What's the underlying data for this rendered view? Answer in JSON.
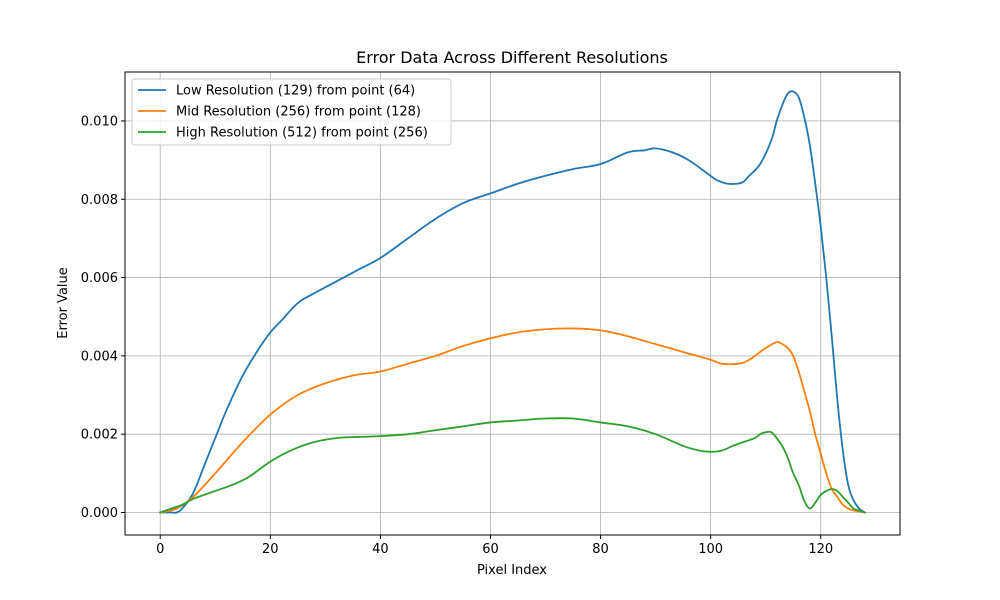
{
  "chart_data": {
    "type": "line",
    "title": "Error Data Across Different Resolutions",
    "xlabel": "Pixel Index",
    "ylabel": "Error Value",
    "xlim": [
      -6.4,
      134.4
    ],
    "ylim": [
      -0.000575,
      0.01125
    ],
    "xticks": [
      0,
      20,
      40,
      60,
      80,
      100,
      120
    ],
    "yticks": [
      0.0,
      0.002,
      0.004,
      0.006,
      0.008,
      0.01
    ],
    "xtick_labels": [
      "0",
      "20",
      "40",
      "60",
      "80",
      "100",
      "120"
    ],
    "ytick_labels": [
      "0.000",
      "0.002",
      "0.004",
      "0.006",
      "0.008",
      "0.010"
    ],
    "grid": true,
    "legend_position": "top-left",
    "series": [
      {
        "name": "Low Resolution (129) from point (64)",
        "color": "#1f77b4",
        "x": [
          0,
          2,
          3,
          4,
          6,
          8,
          10,
          12,
          15,
          18,
          20,
          22,
          25,
          28,
          32,
          36,
          40,
          45,
          50,
          55,
          60,
          65,
          70,
          75,
          80,
          85,
          88,
          90,
          93,
          96,
          99,
          101,
          103,
          105,
          106,
          107,
          109,
          111,
          112,
          113,
          114,
          115,
          116,
          117,
          118,
          119,
          120,
          121,
          122,
          123,
          124,
          125,
          126,
          127,
          128
        ],
        "values": [
          0.0,
          0.0,
          0.0,
          0.0001,
          0.0005,
          0.0012,
          0.0019,
          0.0026,
          0.0035,
          0.0042,
          0.0046,
          0.0049,
          0.00535,
          0.0056,
          0.0059,
          0.0062,
          0.0065,
          0.007,
          0.0075,
          0.0079,
          0.00815,
          0.0084,
          0.0086,
          0.00877,
          0.0089,
          0.0092,
          0.00925,
          0.0093,
          0.0092,
          0.009,
          0.0087,
          0.0085,
          0.0084,
          0.0084,
          0.00845,
          0.0086,
          0.0089,
          0.0095,
          0.01,
          0.0104,
          0.0107,
          0.01075,
          0.0106,
          0.0101,
          0.0094,
          0.0084,
          0.0073,
          0.006,
          0.0045,
          0.0029,
          0.0016,
          0.0007,
          0.0003,
          0.0001,
          0.0
        ]
      },
      {
        "name": "Mid Resolution (256) from point (128)",
        "color": "#ff7f0e",
        "x": [
          0,
          3,
          6,
          10,
          15,
          20,
          25,
          30,
          35,
          40,
          45,
          50,
          55,
          60,
          65,
          70,
          75,
          80,
          85,
          90,
          95,
          100,
          102,
          105,
          107,
          110,
          112,
          113,
          114,
          115,
          116,
          117,
          118,
          119,
          120,
          121,
          122,
          123,
          124,
          125,
          126,
          128
        ],
        "values": [
          0.0,
          0.0001,
          0.0004,
          0.001,
          0.0018,
          0.0025,
          0.003,
          0.0033,
          0.0035,
          0.0036,
          0.0038,
          0.004,
          0.00425,
          0.00445,
          0.0046,
          0.00468,
          0.0047,
          0.00465,
          0.0045,
          0.0043,
          0.0041,
          0.0039,
          0.0038,
          0.0038,
          0.0039,
          0.0042,
          0.00435,
          0.0043,
          0.0042,
          0.004,
          0.0036,
          0.0031,
          0.0026,
          0.002,
          0.0015,
          0.001,
          0.0006,
          0.0004,
          0.0002,
          0.0001,
          5e-05,
          0.0
        ]
      },
      {
        "name": "High Resolution (512) from point (256)",
        "color": "#2ca02c",
        "x": [
          0,
          2,
          4,
          6,
          8,
          10,
          13,
          16,
          20,
          24,
          28,
          32,
          36,
          40,
          45,
          50,
          55,
          60,
          65,
          70,
          75,
          80,
          85,
          90,
          95,
          98,
          100,
          102,
          104,
          106,
          108,
          109,
          110,
          111,
          112,
          113,
          114,
          115,
          116,
          117,
          118,
          119,
          120,
          121,
          122,
          123,
          124,
          125,
          126,
          127,
          128
        ],
        "values": [
          0.0,
          0.0001,
          0.0002,
          0.00035,
          0.00045,
          0.00055,
          0.0007,
          0.0009,
          0.0013,
          0.0016,
          0.0018,
          0.0019,
          0.00193,
          0.00195,
          0.002,
          0.0021,
          0.0022,
          0.0023,
          0.00235,
          0.0024,
          0.0024,
          0.0023,
          0.0022,
          0.002,
          0.0017,
          0.00158,
          0.00155,
          0.00158,
          0.0017,
          0.0018,
          0.0019,
          0.002,
          0.00205,
          0.00205,
          0.0019,
          0.0017,
          0.0014,
          0.001,
          0.0007,
          0.0003,
          0.0001,
          0.00025,
          0.00045,
          0.00055,
          0.0006,
          0.00055,
          0.0004,
          0.00025,
          0.0001,
          5e-05,
          0.0
        ]
      }
    ]
  }
}
